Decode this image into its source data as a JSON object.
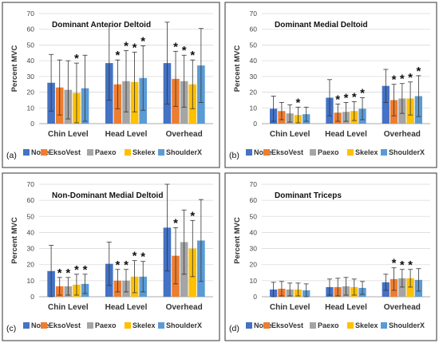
{
  "chart_data": [
    {
      "type": "bar",
      "panel_label": "(a)",
      "title": "Dominant Anterior Deltoid",
      "ylabel": "Percent MVC",
      "ylim": [
        0,
        70
      ],
      "yticks": [
        0,
        10,
        20,
        30,
        40,
        50,
        60,
        70
      ],
      "categories": [
        "Chin Level",
        "Head Level",
        "Overhead"
      ],
      "series": [
        {
          "name": "None",
          "color": "#4472C4",
          "values": [
            26,
            38.5,
            38.5
          ],
          "errors": [
            18,
            23.5,
            26
          ],
          "significant": [
            false,
            false,
            false
          ]
        },
        {
          "name": "EksoVest",
          "color": "#ED7D31",
          "values": [
            23,
            25,
            28.5
          ],
          "errors": [
            17.5,
            15.5,
            17.5
          ],
          "significant": [
            false,
            true,
            true
          ]
        },
        {
          "name": "Paexo",
          "color": "#A5A5A5",
          "values": [
            21.5,
            27,
            27
          ],
          "errors": [
            18.5,
            19.5,
            16.5
          ],
          "significant": [
            false,
            true,
            true
          ]
        },
        {
          "name": "Skelex",
          "color": "#FFC000",
          "values": [
            19.5,
            26.5,
            25
          ],
          "errors": [
            19,
            19,
            15.5
          ],
          "significant": [
            true,
            true,
            true
          ]
        },
        {
          "name": "ShoulderX",
          "color": "#5B9BD5",
          "values": [
            22.5,
            29,
            37
          ],
          "errors": [
            21,
            20.5,
            23.5
          ],
          "significant": [
            false,
            true,
            false
          ]
        }
      ],
      "legend": [
        "None",
        "EksoVest",
        "Paexo",
        "Skelex",
        "ShoulderX"
      ],
      "legend_position": "bottom",
      "grid": true
    },
    {
      "type": "bar",
      "panel_label": "(b)",
      "title": "Dominant Medial Deltoid",
      "ylabel": "Percent MVC",
      "ylim": [
        0,
        70
      ],
      "yticks": [
        0,
        10,
        20,
        30,
        40,
        50,
        60,
        70
      ],
      "categories": [
        "Chin Level",
        "Head Level",
        "Overhead"
      ],
      "series": [
        {
          "name": "None",
          "color": "#4472C4",
          "values": [
            9.5,
            16.5,
            24
          ],
          "errors": [
            8,
            11.5,
            10.5
          ],
          "significant": [
            false,
            false,
            false
          ]
        },
        {
          "name": "EksoVest",
          "color": "#ED7D31",
          "values": [
            8,
            7,
            15
          ],
          "errors": [
            5.5,
            5.5,
            10
          ],
          "significant": [
            false,
            true,
            true
          ]
        },
        {
          "name": "Paexo",
          "color": "#A5A5A5",
          "values": [
            6.5,
            7.5,
            16
          ],
          "errors": [
            5.5,
            6,
            9.5
          ],
          "significant": [
            false,
            true,
            true
          ]
        },
        {
          "name": "Skelex",
          "color": "#FFC000",
          "values": [
            5.5,
            8,
            16
          ],
          "errors": [
            5,
            6,
            10.5
          ],
          "significant": [
            true,
            true,
            true
          ]
        },
        {
          "name": "ShoulderX",
          "color": "#5B9BD5",
          "values": [
            6,
            9.5,
            17.5
          ],
          "errors": [
            4.5,
            7,
            13
          ],
          "significant": [
            false,
            true,
            true
          ]
        }
      ],
      "legend": [
        "None",
        "EksoVest",
        "Paexo",
        "Skelex",
        "ShoulderX"
      ],
      "legend_position": "bottom",
      "grid": true
    },
    {
      "type": "bar",
      "panel_label": "(c)",
      "title": "Non-Dominant Medial Deltoid",
      "ylabel": "Percent MVC",
      "ylim": [
        0,
        70
      ],
      "yticks": [
        0,
        10,
        20,
        30,
        40,
        50,
        60,
        70
      ],
      "categories": [
        "Chin Level",
        "Head Level",
        "Overhead"
      ],
      "series": [
        {
          "name": "None",
          "color": "#4472C4",
          "values": [
            16,
            20.5,
            43
          ],
          "errors": [
            16,
            13.5,
            27
          ],
          "significant": [
            false,
            false,
            false
          ]
        },
        {
          "name": "EksoVest",
          "color": "#ED7D31",
          "values": [
            6.5,
            10,
            25.5
          ],
          "errors": [
            5.5,
            7,
            17.5
          ],
          "significant": [
            true,
            true,
            true
          ]
        },
        {
          "name": "Paexo",
          "color": "#A5A5A5",
          "values": [
            6.5,
            10,
            34
          ],
          "errors": [
            5.5,
            7,
            20
          ],
          "significant": [
            true,
            true,
            false
          ]
        },
        {
          "name": "Skelex",
          "color": "#FFC000",
          "values": [
            7.5,
            12.5,
            30
          ],
          "errors": [
            6.5,
            10,
            17.5
          ],
          "significant": [
            true,
            true,
            true
          ]
        },
        {
          "name": "ShoulderX",
          "color": "#5B9BD5",
          "values": [
            8,
            12.5,
            35
          ],
          "errors": [
            6,
            9.5,
            25.5
          ],
          "significant": [
            true,
            true,
            false
          ]
        }
      ],
      "legend": [
        "None",
        "EksoVest",
        "Paexo",
        "Skelex",
        "ShoulderX"
      ],
      "legend_position": "bottom",
      "grid": true
    },
    {
      "type": "bar",
      "panel_label": "(d)",
      "title": "Dominant Triceps",
      "ylabel": "Percent MVC",
      "ylim": [
        0,
        70
      ],
      "yticks": [
        0,
        10,
        20,
        30,
        40,
        50,
        60,
        70
      ],
      "categories": [
        "Chin Level",
        "Head Level",
        "Overhead"
      ],
      "series": [
        {
          "name": "None",
          "color": "#4472C4",
          "values": [
            4.5,
            6,
            9
          ],
          "errors": [
            4.5,
            5,
            5
          ],
          "significant": [
            false,
            false,
            false
          ]
        },
        {
          "name": "EksoVest",
          "color": "#ED7D31",
          "values": [
            5,
            6,
            11
          ],
          "errors": [
            4.5,
            5.5,
            7
          ],
          "significant": [
            false,
            false,
            true
          ]
        },
        {
          "name": "Paexo",
          "color": "#A5A5A5",
          "values": [
            4.5,
            6.5,
            11.5
          ],
          "errors": [
            4,
            5.5,
            5.5
          ],
          "significant": [
            false,
            false,
            true
          ]
        },
        {
          "name": "Skelex",
          "color": "#FFC000",
          "values": [
            4.5,
            6,
            11.5
          ],
          "errors": [
            4,
            5,
            5.5
          ],
          "significant": [
            false,
            false,
            true
          ]
        },
        {
          "name": "ShoulderX",
          "color": "#5B9BD5",
          "values": [
            4,
            5.5,
            10.5
          ],
          "errors": [
            4,
            4,
            7
          ],
          "significant": [
            false,
            false,
            false
          ]
        }
      ],
      "legend": [
        "None",
        "EksoVest",
        "Paexo",
        "Skelex",
        "ShoulderX"
      ],
      "legend_position": "bottom",
      "grid": true
    }
  ]
}
